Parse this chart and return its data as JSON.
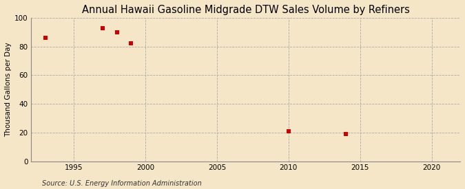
{
  "title": "Annual Hawaii Gasoline Midgrade DTW Sales Volume by Refiners",
  "ylabel": "Thousand Gallons per Day",
  "source": "Source: U.S. Energy Information Administration",
  "background_color": "#f5e6c8",
  "plot_bg_color": "#f5e6c8",
  "data_points": [
    [
      1993,
      86
    ],
    [
      1997,
      93
    ],
    [
      1998,
      90
    ],
    [
      1999,
      82
    ],
    [
      2010,
      21
    ],
    [
      2014,
      19
    ]
  ],
  "marker_color": "#cc0000",
  "marker": "s",
  "marker_size": 4,
  "xlim": [
    1992,
    2022
  ],
  "ylim": [
    0,
    100
  ],
  "xticks": [
    1995,
    2000,
    2005,
    2010,
    2015,
    2020
  ],
  "yticks": [
    0,
    20,
    40,
    60,
    80,
    100
  ],
  "title_fontsize": 10.5,
  "label_fontsize": 7.5,
  "tick_fontsize": 7.5,
  "source_fontsize": 7,
  "grid_color": "#aaaaaa",
  "grid_linestyle": "--",
  "grid_linewidth": 0.6
}
